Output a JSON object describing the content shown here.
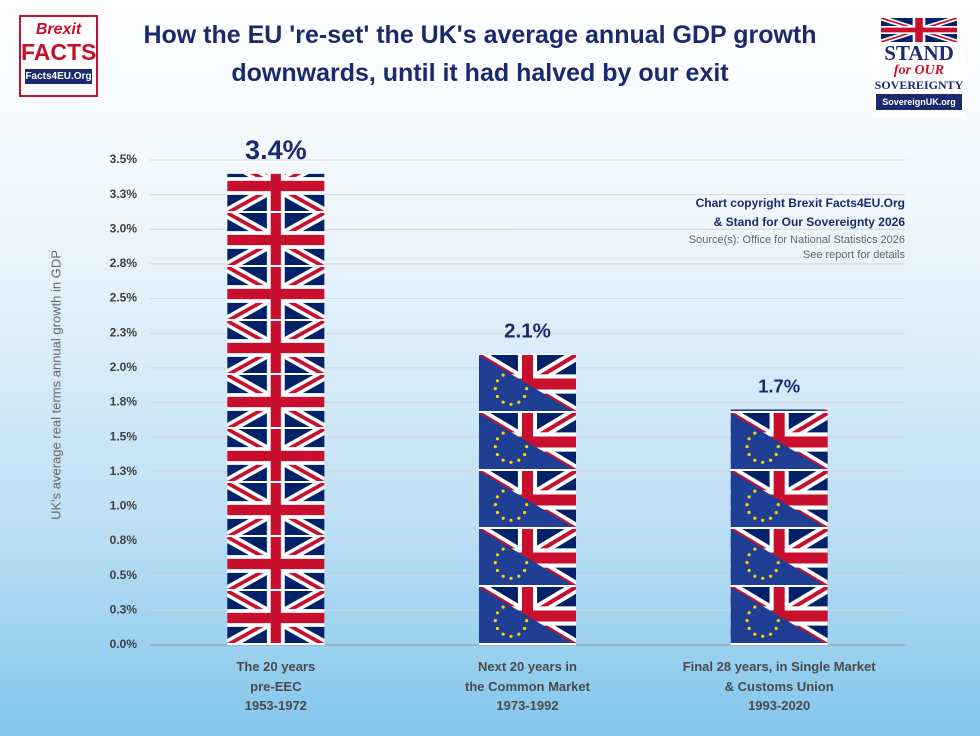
{
  "chart_data": {
    "type": "bar",
    "title": "How the EU 're-set' the UK's average annual GDP growth\ndownwards, until it had halved by our exit",
    "y_label": "UK's average real terms annual growth in GDP",
    "categories": [
      "The 20 years\npre-EEC\n1953-1972",
      "Next 20 years in\nthe Common Market\n1973-1992",
      "Final 28 years, in Single Market\n& Customs Union\n1993-2020"
    ],
    "values": [
      3.4,
      2.1,
      1.7
    ],
    "value_labels": [
      "3.4%",
      "2.1%",
      "1.7%"
    ],
    "ylim": [
      0,
      3.5
    ],
    "yticks": [
      {
        "value": 0,
        "label": "0.0%"
      },
      {
        "value": 0.25,
        "label": "0.3%"
      },
      {
        "value": 0.5,
        "label": "0.5%"
      },
      {
        "value": 0.75,
        "label": "0.8%"
      },
      {
        "value": 1,
        "label": "1.0%"
      },
      {
        "value": 1.25,
        "label": "1.3%"
      },
      {
        "value": 1.5,
        "label": "1.5%"
      },
      {
        "value": 1.75,
        "label": "1.8%"
      },
      {
        "value": 2,
        "label": "2.0%"
      },
      {
        "value": 2.25,
        "label": "2.3%"
      },
      {
        "value": 2.5,
        "label": "2.5%"
      },
      {
        "value": 2.75,
        "label": "2.8%"
      },
      {
        "value": 3,
        "label": "3.0%"
      },
      {
        "value": 3.25,
        "label": "3.3%"
      },
      {
        "value": 3.5,
        "label": "3.5%"
      }
    ],
    "grid": true,
    "annotations": [
      "Chart copyright Brexit Facts4EU.Org",
      "& Stand for Our Sovereignty 2026",
      "Source(s): Office for National Statistics 2026",
      "See report for details"
    ]
  },
  "logos": {
    "left": [
      "Brexit",
      "FACTS",
      "Facts4EU.Org"
    ],
    "right": [
      "STAND",
      "for OUR",
      "SOVEREIGNTY",
      "SovereignUK.org"
    ]
  }
}
